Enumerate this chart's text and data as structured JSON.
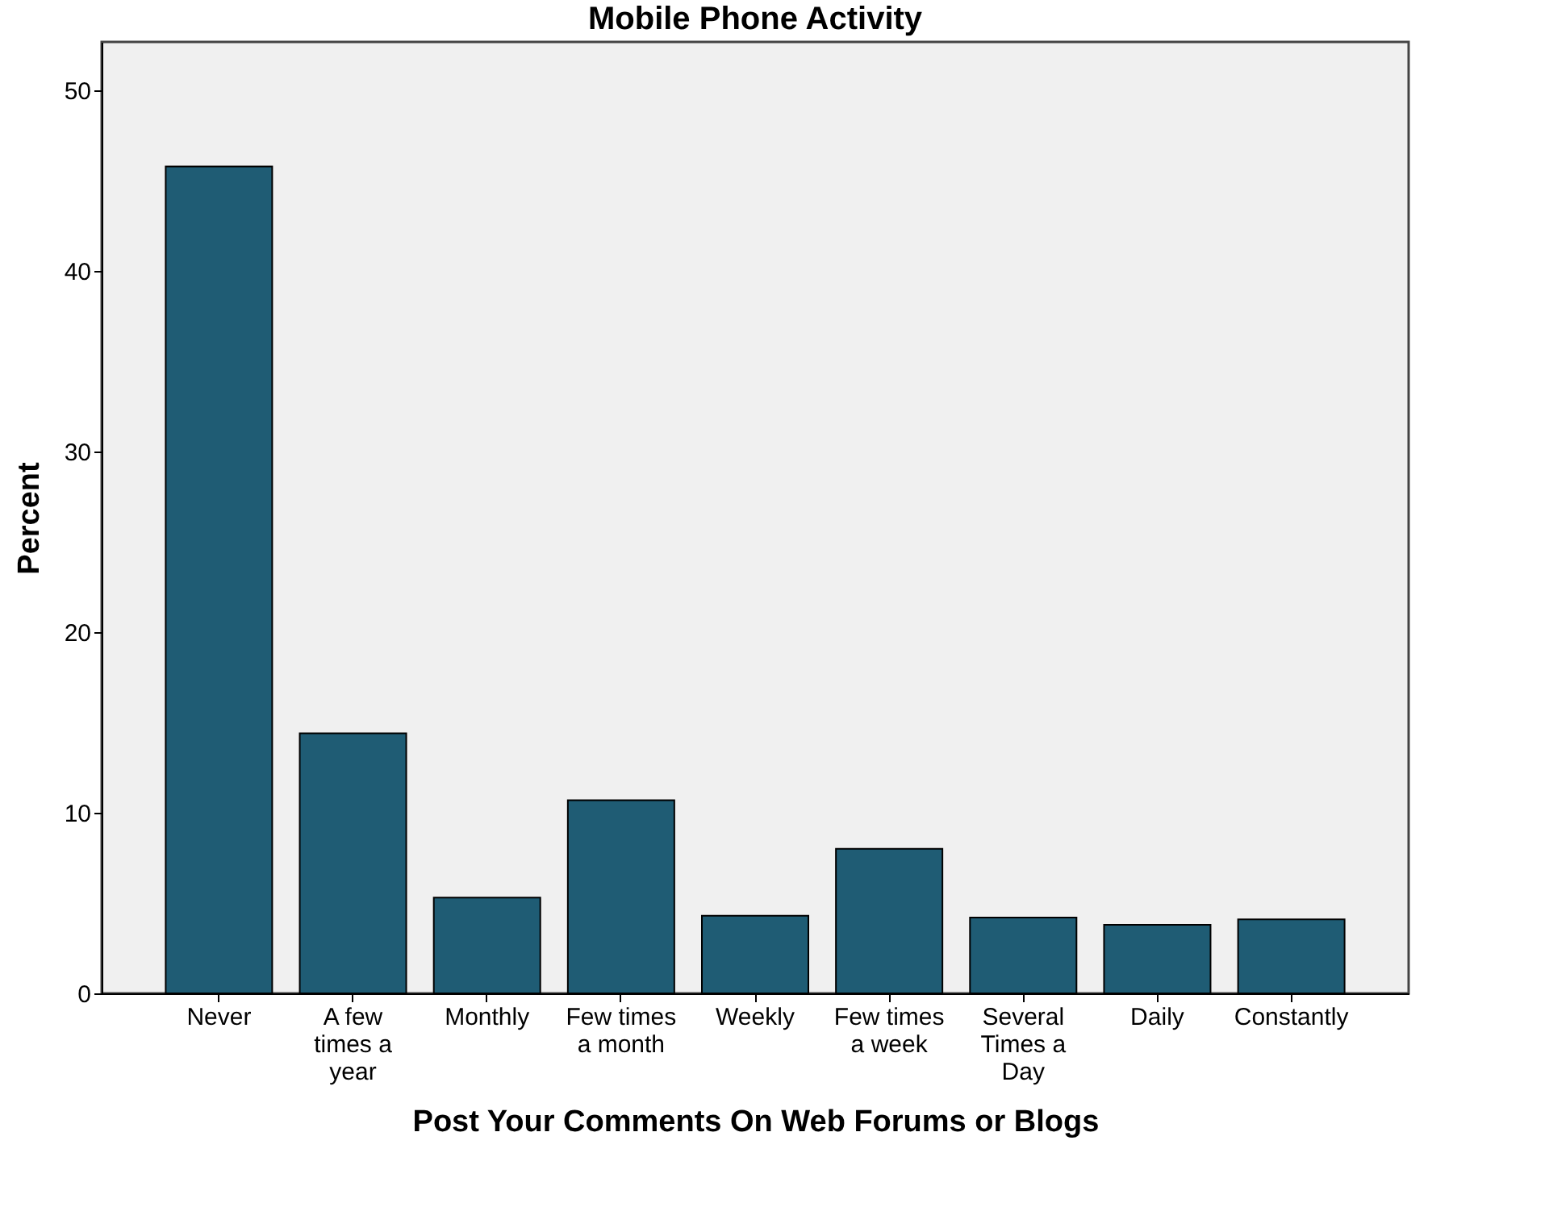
{
  "chart_data": {
    "type": "bar",
    "title": "Mobile Phone Activity",
    "xlabel": "Post Your Comments On Web Forums or Blogs",
    "ylabel": "Percent",
    "categories": [
      "Never",
      "A few times a year",
      "Monthly",
      "Few times a month",
      "Weekly",
      "Few times a week",
      "Several Times a Day",
      "Daily",
      "Constantly"
    ],
    "values": [
      45.8,
      14.4,
      5.3,
      10.7,
      4.3,
      8.0,
      4.2,
      3.8,
      4.1
    ],
    "color": "#1f5c74",
    "ylim": [
      0,
      52.7
    ],
    "yticks": [
      0,
      10,
      20,
      30,
      40,
      50
    ],
    "grid": false
  }
}
